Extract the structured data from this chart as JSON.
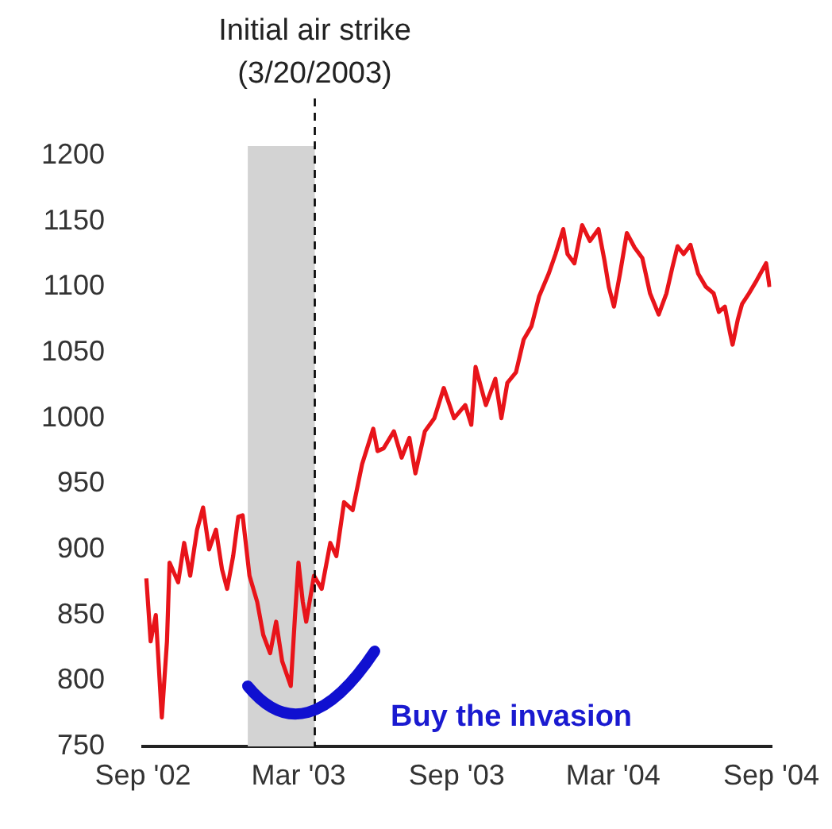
{
  "chart_data": {
    "type": "line",
    "x": [
      "2002-09-05",
      "2002-09-10",
      "2002-09-16",
      "2002-09-23",
      "2002-09-29",
      "2002-10-02",
      "2002-10-12",
      "2002-10-19",
      "2002-10-26",
      "2002-11-03",
      "2002-11-10",
      "2002-11-17",
      "2002-11-25",
      "2002-12-02",
      "2002-12-08",
      "2002-12-15",
      "2002-12-21",
      "2002-12-26",
      "2003-01-03",
      "2003-01-12",
      "2003-01-19",
      "2003-01-27",
      "2003-02-03",
      "2003-02-10",
      "2003-02-20",
      "2003-02-25",
      "2003-03-01",
      "2003-03-06",
      "2003-03-10",
      "2003-03-19",
      "2003-03-28",
      "2003-04-07",
      "2003-04-14",
      "2003-04-23",
      "2003-05-03",
      "2003-05-14",
      "2003-05-27",
      "2003-06-01",
      "2003-06-08",
      "2003-06-20",
      "2003-06-29",
      "2003-07-08",
      "2003-07-15",
      "2003-07-26",
      "2003-08-06",
      "2003-08-17",
      "2003-08-29",
      "2003-09-11",
      "2003-09-18",
      "2003-09-23",
      "2003-10-05",
      "2003-10-16",
      "2003-10-23",
      "2003-10-30",
      "2003-11-09",
      "2003-11-18",
      "2003-11-27",
      "2003-12-06",
      "2003-12-17",
      "2003-12-25",
      "2004-01-03",
      "2004-01-08",
      "2004-01-16",
      "2004-01-25",
      "2004-02-03",
      "2004-02-13",
      "2004-02-20",
      "2004-02-25",
      "2004-03-02",
      "2004-03-09",
      "2004-03-17",
      "2004-03-26",
      "2004-04-04",
      "2004-04-13",
      "2004-04-23",
      "2004-05-02",
      "2004-05-09",
      "2004-05-15",
      "2004-05-22",
      "2004-05-30",
      "2004-06-08",
      "2004-06-17",
      "2004-06-26",
      "2004-07-02",
      "2004-07-09",
      "2004-07-15",
      "2004-07-18",
      "2004-07-24",
      "2004-07-29",
      "2004-08-06",
      "2004-08-15",
      "2004-08-26",
      "2004-08-30"
    ],
    "series": [
      {
        "color": "#e8141a",
        "values": [
          878,
          830,
          850,
          772,
          830,
          890,
          875,
          905,
          880,
          915,
          932,
          900,
          915,
          885,
          870,
          895,
          925,
          926,
          880,
          860,
          835,
          821,
          845,
          815,
          796,
          850,
          890,
          860,
          845,
          880,
          870,
          905,
          895,
          936,
          930,
          965,
          992,
          975,
          977,
          990,
          970,
          985,
          958,
          990,
          1000,
          1023,
          1000,
          1010,
          995,
          1039,
          1010,
          1030,
          1000,
          1027,
          1035,
          1060,
          1070,
          1093,
          1110,
          1125,
          1144,
          1125,
          1118,
          1147,
          1135,
          1144,
          1120,
          1100,
          1085,
          1110,
          1141,
          1130,
          1122,
          1095,
          1079,
          1095,
          1115,
          1131,
          1125,
          1132,
          1110,
          1100,
          1095,
          1081,
          1085,
          1065,
          1056,
          1075,
          1087,
          1095,
          1105,
          1118,
          1100
        ]
      }
    ],
    "xlim": [
      "2002-09-01",
      "2004-09-01"
    ],
    "xticks": [
      {
        "value": "2002-09-01",
        "label": "Sep '02"
      },
      {
        "value": "2003-03-01",
        "label": "Mar '03"
      },
      {
        "value": "2003-09-01",
        "label": "Sep '03"
      },
      {
        "value": "2004-03-01",
        "label": "Mar '04"
      },
      {
        "value": "2004-09-01",
        "label": "Sep '04"
      }
    ],
    "ylim": [
      750,
      1200
    ],
    "yticks": [
      750,
      800,
      850,
      900,
      950,
      1000,
      1050,
      1100,
      1150,
      1200
    ],
    "bands": [
      {
        "axis": "x",
        "from": "2003-01-01",
        "to": "2003-03-20",
        "color": "#d3d3d3"
      }
    ],
    "ref_lines": [
      {
        "axis": "x",
        "value": "2003-03-20",
        "label": "Initial air strike (3/20/2003)",
        "color": "#000000",
        "line_style": "dashed"
      }
    ],
    "annotations": [
      "Buy the invasion"
    ]
  }
}
